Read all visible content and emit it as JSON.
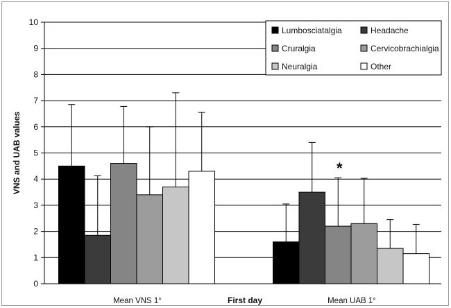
{
  "chart_data": {
    "type": "bar",
    "title": "",
    "xlabel": "First day",
    "ylabel": "VNS and UAB values",
    "ylim": [
      0,
      10
    ],
    "yticks": [
      "0",
      "1",
      "2",
      "3",
      "4",
      "5",
      "6",
      "7",
      "8",
      "9",
      "10"
    ],
    "grid": true,
    "legend_position": "top-right",
    "categories": [
      "Mean VNS 1°",
      "Mean UAB 1°"
    ],
    "series": [
      {
        "name": "Lumbosciatalgia",
        "color": "#000000",
        "values": [
          4.5,
          1.6
        ],
        "error": [
          2.35,
          1.45
        ]
      },
      {
        "name": "Headache",
        "color": "#3b3b3b",
        "values": [
          1.85,
          3.5
        ],
        "error": [
          2.28,
          1.9
        ]
      },
      {
        "name": "Cruralgia",
        "color": "#858585",
        "values": [
          4.6,
          2.2
        ],
        "error": [
          2.18,
          1.85
        ]
      },
      {
        "name": "Cervicobrachialgia",
        "color": "#9c9c9c",
        "values": [
          3.4,
          2.3
        ],
        "error": [
          2.6,
          1.73
        ]
      },
      {
        "name": "Neuralgia",
        "color": "#c6c6c6",
        "values": [
          3.7,
          1.35
        ],
        "error": [
          3.6,
          1.1
        ]
      },
      {
        "name": "Other",
        "color": "#ffffff",
        "values": [
          4.3,
          1.15
        ],
        "error": [
          2.25,
          1.12
        ]
      }
    ],
    "annotations": [
      {
        "text": "*",
        "category": "Mean UAB 1°",
        "series": "Cruralgia"
      }
    ]
  }
}
